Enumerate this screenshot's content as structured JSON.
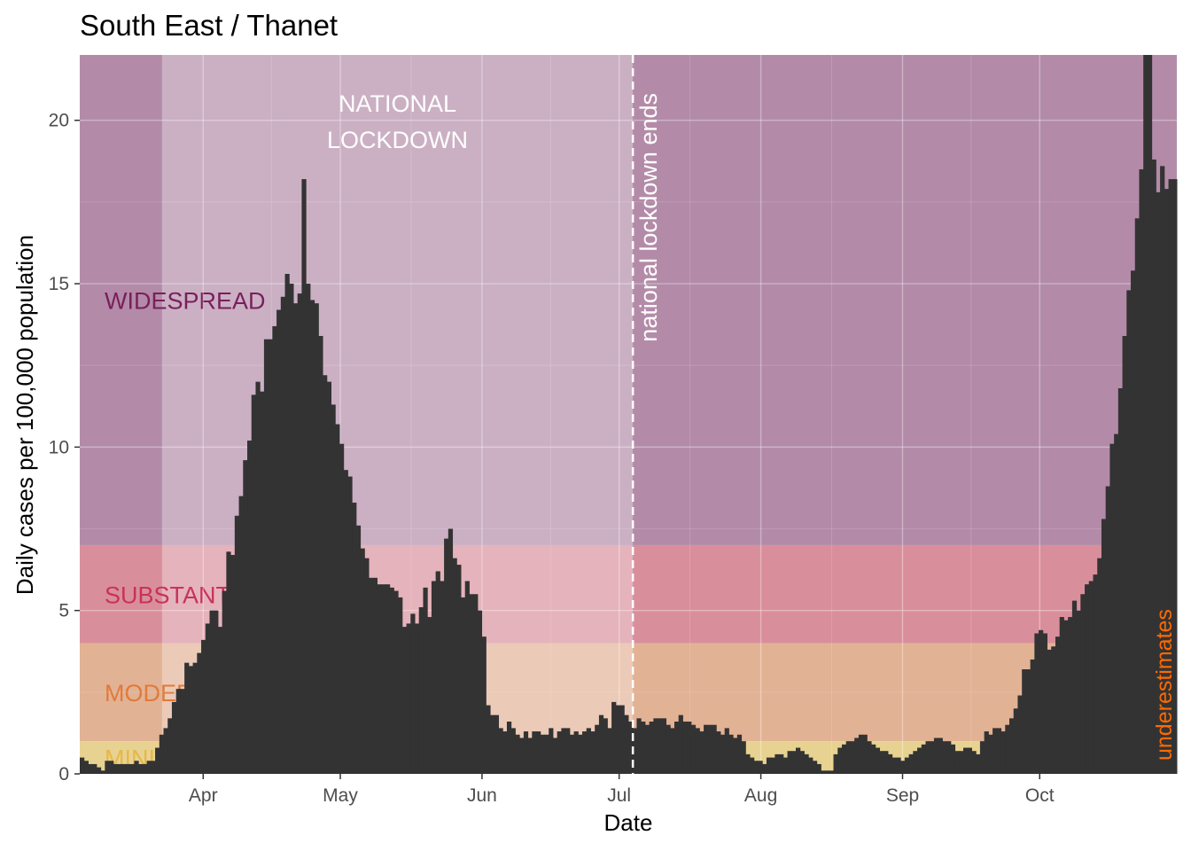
{
  "chart_data": {
    "type": "bar",
    "title": "South East / Thanet",
    "xlabel": "Date",
    "ylabel": "Daily cases per 100,000 population",
    "ylim": [
      0,
      22
    ],
    "y_ticks": [
      0,
      5,
      10,
      15,
      20
    ],
    "x_range_days": [
      0,
      240
    ],
    "x_ticks": [
      {
        "label": "Apr",
        "day": 27
      },
      {
        "label": "May",
        "day": 57
      },
      {
        "label": "Jun",
        "day": 88
      },
      {
        "label": "Jul",
        "day": 118
      },
      {
        "label": "Aug",
        "day": 149
      },
      {
        "label": "Sep",
        "day": 180
      },
      {
        "label": "Oct",
        "day": 210
      }
    ],
    "zones": [
      {
        "name": "WIDESPREAD",
        "from": 7,
        "to": 22,
        "color": "#b38ba8",
        "text_color": "#7a1f5c"
      },
      {
        "name": "SUBSTANTIAL",
        "from": 4,
        "to": 7,
        "color": "#d98f9b",
        "text_color": "#c8325a"
      },
      {
        "name": "MODERATE",
        "from": 1,
        "to": 4,
        "color": "#e2b295",
        "text_color": "#e07a3a"
      },
      {
        "name": "MINIMAL",
        "from": 0,
        "to": 1,
        "color": "#e8d291",
        "text_color": "#e6b84a"
      }
    ],
    "lockdown": {
      "label_line1": "NATIONAL",
      "label_line2": "LOCKDOWN",
      "start_day": 18,
      "end_day": 121
    },
    "lockdown_end": {
      "label": "national lockdown ends",
      "day": 121
    },
    "underestimate_note": {
      "label": "underestimates",
      "color": "#ff6a00"
    },
    "bar_color": "#333333",
    "values": [
      0.5,
      0.4,
      0.3,
      0.3,
      0.2,
      0.1,
      0.4,
      0.4,
      0.3,
      0.3,
      0.3,
      0.3,
      0.3,
      0.4,
      0.3,
      0.3,
      0.4,
      0.4,
      0.8,
      1.2,
      1.4,
      1.7,
      2.2,
      2.6,
      2.6,
      3.4,
      3.3,
      3.4,
      3.7,
      4.1,
      4.6,
      5.0,
      5.0,
      4.5,
      5.6,
      6.8,
      6.7,
      7.9,
      8.5,
      9.6,
      10.2,
      11.6,
      12.0,
      11.7,
      13.3,
      13.3,
      13.7,
      14.2,
      14.6,
      15.3,
      15.0,
      14.4,
      14.7,
      18.2,
      15.0,
      14.5,
      14.4,
      13.4,
      12.2,
      12.0,
      11.3,
      10.7,
      10.1,
      9.3,
      9.1,
      8.3,
      7.6,
      6.9,
      6.6,
      6.0,
      6.0,
      5.8,
      5.8,
      5.8,
      5.7,
      5.6,
      5.4,
      4.5,
      4.6,
      4.9,
      4.6,
      5.1,
      5.7,
      4.8,
      5.9,
      6.2,
      5.9,
      7.2,
      7.5,
      6.6,
      6.4,
      5.4,
      5.9,
      5.5,
      5.5,
      5.0,
      4.2,
      2.1,
      1.8,
      1.8,
      1.4,
      1.3,
      1.6,
      1.4,
      1.2,
      1.1,
      1.3,
      1.1,
      1.3,
      1.3,
      1.2,
      1.2,
      1.4,
      1.1,
      1.3,
      1.4,
      1.4,
      1.2,
      1.3,
      1.2,
      1.3,
      1.4,
      1.3,
      1.5,
      1.8,
      1.7,
      1.4,
      2.2,
      2.1,
      2.1,
      1.8,
      1.6,
      1.4,
      1.7,
      1.6,
      1.5,
      1.6,
      1.7,
      1.7,
      1.7,
      1.5,
      1.4,
      1.6,
      1.8,
      1.6,
      1.6,
      1.5,
      1.4,
      1.3,
      1.5,
      1.5,
      1.5,
      1.3,
      1.2,
      1.4,
      1.2,
      1.1,
      1.2,
      1.0,
      0.6,
      0.5,
      0.4,
      0.4,
      0.3,
      0.5,
      0.5,
      0.6,
      0.6,
      0.5,
      0.7,
      0.7,
      0.8,
      0.7,
      0.6,
      0.5,
      0.4,
      0.3,
      0.1,
      0.1,
      0.1,
      0.6,
      0.8,
      0.9,
      1.0,
      1.0,
      1.1,
      1.2,
      1.2,
      1.0,
      0.9,
      0.8,
      0.7,
      0.7,
      0.6,
      0.5,
      0.5,
      0.4,
      0.5,
      0.6,
      0.7,
      0.8,
      0.9,
      1.0,
      1.0,
      1.1,
      1.1,
      1.0,
      1.0,
      0.9,
      0.7,
      0.7,
      0.8,
      0.8,
      0.7,
      0.6,
      1.0,
      1.3,
      1.2,
      1.4,
      1.4,
      1.3,
      1.5,
      1.7,
      2.0,
      2.4,
      3.2,
      3.2,
      3.5,
      4.3,
      4.4,
      4.3,
      3.8,
      3.9,
      4.2,
      4.8,
      4.7,
      4.8,
      5.3,
      5.0,
      5.5,
      5.8,
      5.9,
      6.1,
      6.6,
      7.8,
      8.8,
      10.1,
      10.4,
      11.8,
      13.4,
      14.8,
      15.4,
      17.0,
      18.5,
      22.0,
      22.0,
      18.8,
      17.8,
      18.6,
      17.9,
      18.2,
      18.2
    ]
  }
}
